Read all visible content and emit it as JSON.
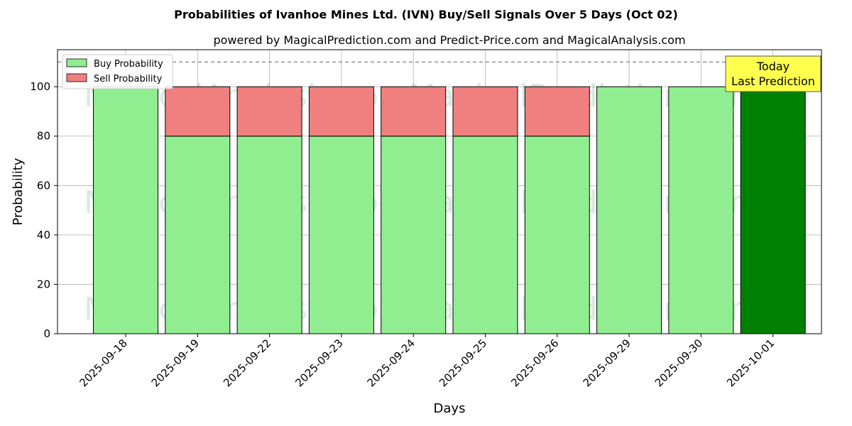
{
  "chart_data": {
    "type": "bar",
    "stacked": true,
    "title": "Probabilities of Ivanhoe Mines Ltd. (IVN) Buy/Sell Signals Over 5 Days (Oct 02)",
    "subtitle": "powered by MagicalPrediction.com and Predict-Price.com and MagicalAnalysis.com",
    "xlabel": "Days",
    "ylabel": "Probability",
    "ylim": [
      0,
      115
    ],
    "yticks": [
      0,
      20,
      40,
      60,
      80,
      100
    ],
    "grid": true,
    "legend_position": "top-left",
    "reference_line": 110,
    "categories": [
      "2025-09-18",
      "2025-09-19",
      "2025-09-22",
      "2025-09-23",
      "2025-09-24",
      "2025-09-25",
      "2025-09-26",
      "2025-09-29",
      "2025-09-30",
      "2025-10-01"
    ],
    "series": [
      {
        "name": "Buy Probability",
        "values": [
          100,
          80,
          80,
          80,
          80,
          80,
          80,
          100,
          100,
          100
        ],
        "color": "#90ee90"
      },
      {
        "name": "Sell Probability",
        "values": [
          0,
          20,
          20,
          20,
          20,
          20,
          20,
          0,
          0,
          0
        ],
        "color": "#f08080"
      }
    ],
    "highlight": {
      "index": 9,
      "color": "#008000"
    },
    "annotation": {
      "lines": [
        "Today",
        "Last Prediction"
      ],
      "background": "#ffff4d"
    },
    "watermarks": [
      "MagicalAnalysis.com",
      "MagicalPrediction.com"
    ]
  }
}
